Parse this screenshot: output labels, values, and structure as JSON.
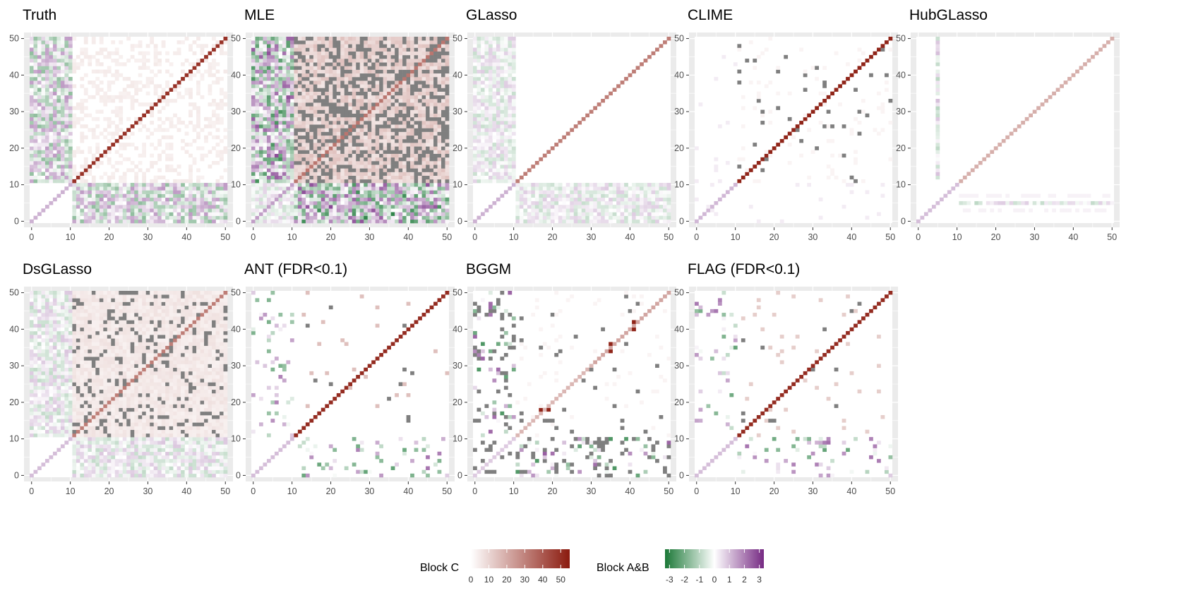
{
  "chart_data": {
    "type": "heatmap",
    "description_axes": {
      "xlim": [
        0,
        50
      ],
      "ylim": [
        0,
        50
      ],
      "x_ticks": [
        "0",
        "10",
        "20",
        "30",
        "40",
        "50"
      ],
      "y_ticks": [
        "0",
        "10",
        "20",
        "30",
        "40",
        "50"
      ]
    },
    "panels": [
      {
        "title": "Truth",
        "style": "truth"
      },
      {
        "title": "MLE",
        "style": "mle"
      },
      {
        "title": "GLasso",
        "style": "glasso"
      },
      {
        "title": "CLIME",
        "style": "clime"
      },
      {
        "title": "HubGLasso",
        "style": "hub"
      },
      {
        "title": "DsGLasso",
        "style": "dsglasso"
      },
      {
        "title": "ANT (FDR<0.1)",
        "style": "ant"
      },
      {
        "title": "BGGM",
        "style": "bggm"
      },
      {
        "title": "FLAG (FDR<0.1)",
        "style": "flag"
      }
    ],
    "legends": [
      {
        "title": "Block C",
        "ticks": [
          "0",
          "10",
          "20",
          "30",
          "40",
          "50"
        ],
        "range": [
          0,
          55
        ],
        "colors": [
          "#ffffff",
          "#8b1a0e"
        ]
      },
      {
        "title": "Block A&B",
        "ticks": [
          "-3",
          "-2",
          "-1",
          "0",
          "1",
          "2",
          "3"
        ],
        "range": [
          -3.3,
          3.3
        ],
        "colors": [
          "#1b7837",
          "#ffffff",
          "#762a83"
        ]
      }
    ],
    "colors": {
      "panel_bg": "#ebebeb",
      "grid": "#ffffff",
      "na_gray": "#7f7f7f",
      "block_c_high": "#8b1a0e",
      "green": "#1b7837",
      "purple": "#762a83"
    }
  }
}
